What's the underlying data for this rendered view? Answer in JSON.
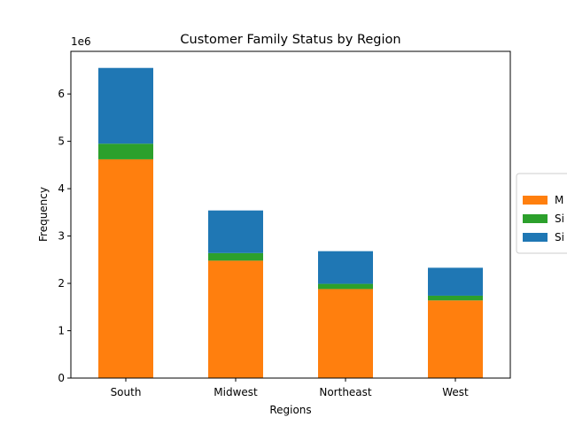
{
  "chart_data": {
    "type": "bar",
    "stacked": true,
    "title": "Customer Family Status by Region",
    "xlabel": "Regions",
    "ylabel": "Frequency",
    "y_scale_label": "1e6",
    "categories": [
      "South",
      "Midwest",
      "Northeast",
      "West"
    ],
    "ylim": [
      0,
      6900000
    ],
    "yticks": [
      0,
      1000000,
      2000000,
      3000000,
      4000000,
      5000000,
      6000000
    ],
    "ytick_labels": [
      "0",
      "1",
      "2",
      "3",
      "4",
      "5",
      "6"
    ],
    "series": [
      {
        "name": "M",
        "color": "#ff7f0e",
        "values": [
          4620000,
          2480000,
          1880000,
          1640000
        ]
      },
      {
        "name": "Si",
        "color": "#2ca02c",
        "values": [
          330000,
          160000,
          110000,
          100000
        ]
      },
      {
        "name": "Si",
        "color": "#1f77b4",
        "values": [
          1600000,
          900000,
          690000,
          590000
        ]
      }
    ],
    "legend": {
      "position": "right"
    },
    "grid": false
  }
}
